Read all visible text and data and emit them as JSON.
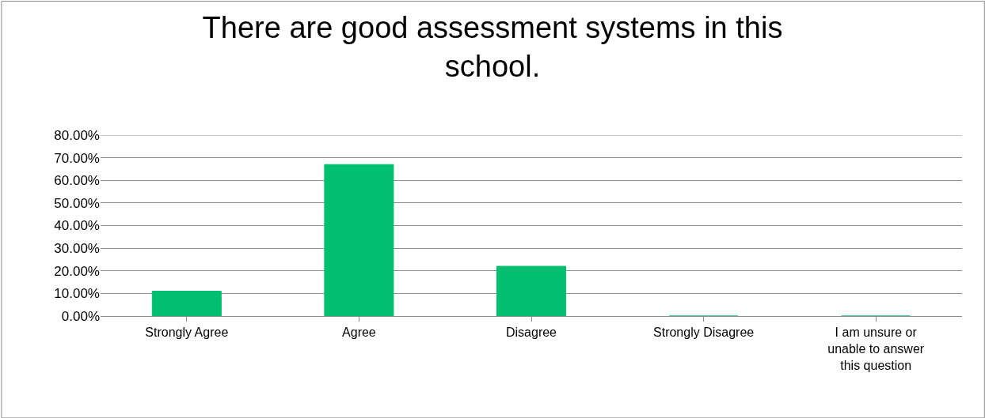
{
  "chart_data": {
    "type": "bar",
    "title": "There are good assessment systems in this school.",
    "categories": [
      "Strongly Agree",
      "Agree",
      "Disagree",
      "Strongly Disagree",
      "I am unsure or unable to answer this question"
    ],
    "values": [
      11,
      67,
      22,
      0,
      0
    ],
    "color": "#00c06f",
    "ylim": [
      0,
      80
    ],
    "yticks": [
      {
        "value": 0,
        "label": "0.00%"
      },
      {
        "value": 10,
        "label": "10.00%"
      },
      {
        "value": 20,
        "label": "20.00%"
      },
      {
        "value": 30,
        "label": "30.00%"
      },
      {
        "value": 40,
        "label": "40.00%"
      },
      {
        "value": 50,
        "label": "50.00%"
      },
      {
        "value": 60,
        "label": "60.00%"
      },
      {
        "value": 70,
        "label": "70.00%"
      },
      {
        "value": 80,
        "label": "80.00%"
      }
    ],
    "grid": "y",
    "legend": false
  }
}
